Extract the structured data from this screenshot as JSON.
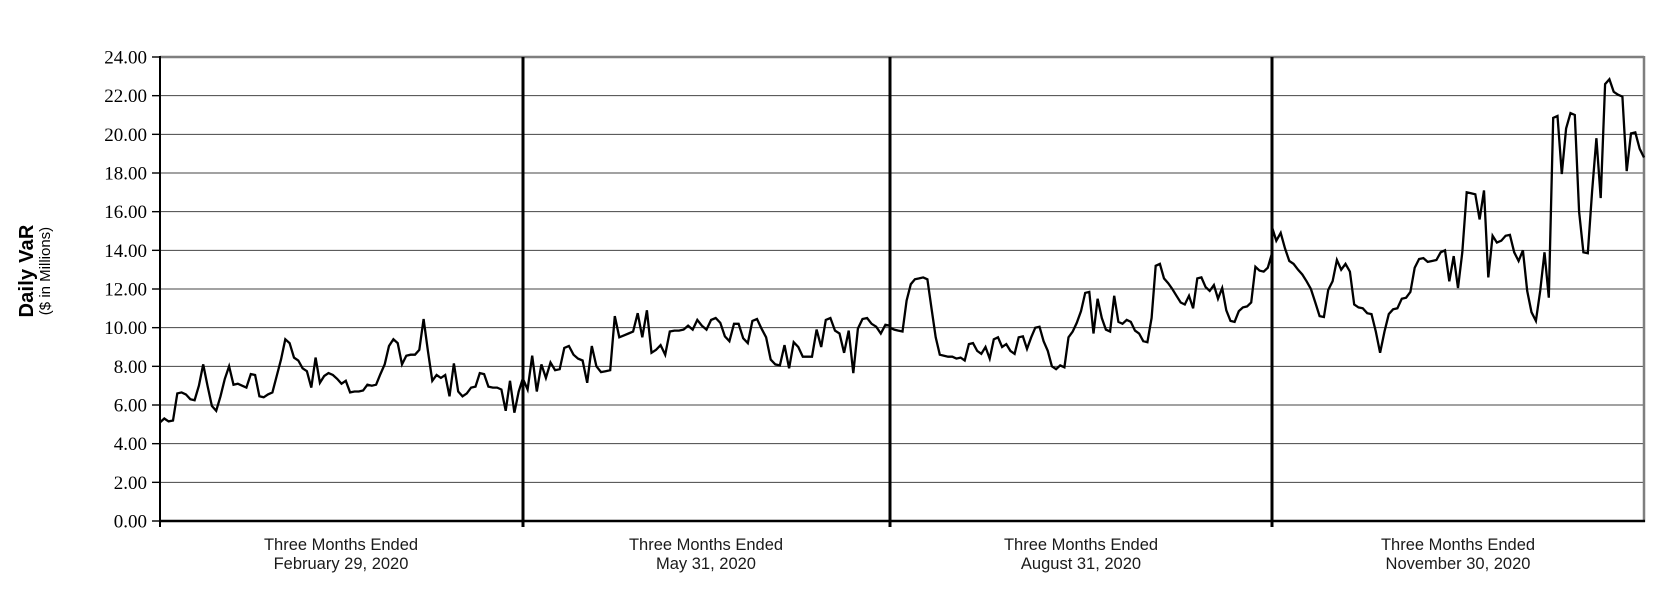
{
  "chart_data": {
    "type": "line",
    "title": "",
    "ylabel": "Daily VaR",
    "ylabel_sub": "($ in Millions)",
    "ylim": [
      0,
      24
    ],
    "ytick_step": 2,
    "ytick_labels": [
      "0.00",
      "2.00",
      "4.00",
      "6.00",
      "8.00",
      "10.00",
      "12.00",
      "14.00",
      "16.00",
      "18.00",
      "20.00",
      "22.00",
      "24.00"
    ],
    "grid": true,
    "legend_position": "none",
    "line_color": "#000000",
    "grid_color": "#444444",
    "border_color": "#7f7f7f",
    "axis_color": "#000000",
    "sections": [
      {
        "label_line1": "Three Months Ended",
        "label_line2": "February 29, 2020",
        "values": [
          5.1,
          5.3,
          5.15,
          5.2,
          6.6,
          6.65,
          6.55,
          6.3,
          6.25,
          7.0,
          8.1,
          7.0,
          5.95,
          5.7,
          6.45,
          7.35,
          8.0,
          7.05,
          7.1,
          7.0,
          6.9,
          7.6,
          7.55,
          6.45,
          6.4,
          6.55,
          6.65,
          7.5,
          8.35,
          9.4,
          9.2,
          8.45,
          8.3,
          7.9,
          7.75,
          6.9,
          8.45,
          7.15,
          7.5,
          7.65,
          7.55,
          7.35,
          7.1,
          7.25,
          6.65,
          6.7,
          6.7,
          6.75,
          7.05,
          7.0,
          7.05,
          7.6,
          8.1,
          9.05,
          9.4,
          9.2,
          8.1,
          8.55,
          8.6,
          8.6,
          8.85,
          10.45,
          8.8,
          7.25,
          7.55,
          7.4,
          7.55,
          6.45,
          8.15,
          6.7,
          6.45,
          6.6,
          6.9,
          6.95,
          7.65,
          7.6,
          6.95,
          6.9,
          6.9,
          6.8,
          5.7,
          7.25,
          5.6,
          6.7,
          7.4
        ]
      },
      {
        "label_line1": "Three Months Ended",
        "label_line2": "May 31, 2020",
        "values": [
          7.35,
          6.8,
          8.55,
          6.7,
          8.1,
          7.4,
          8.2,
          7.8,
          7.85,
          8.95,
          9.05,
          8.6,
          8.4,
          8.3,
          7.15,
          9.05,
          8.0,
          7.7,
          7.75,
          7.8,
          10.6,
          9.5,
          9.6,
          9.7,
          9.8,
          10.75,
          9.5,
          10.9,
          8.7,
          8.85,
          9.1,
          8.6,
          9.8,
          9.85,
          9.85,
          9.9,
          10.1,
          9.9,
          10.4,
          10.1,
          9.9,
          10.4,
          10.5,
          10.25,
          9.55,
          9.3,
          10.2,
          10.2,
          9.45,
          9.2,
          10.35,
          10.45,
          9.95,
          9.5,
          8.35,
          8.1,
          8.05,
          9.1,
          7.9,
          9.25,
          9.0,
          8.5,
          8.5,
          8.5,
          9.9,
          9.0,
          10.4,
          10.5,
          9.85,
          9.7,
          8.7,
          9.85,
          7.65,
          9.95,
          10.45,
          10.5,
          10.2,
          10.05,
          9.7,
          10.15,
          10.1
        ]
      },
      {
        "label_line1": "Three Months Ended",
        "label_line2": "August 31, 2020",
        "values": [
          10.0,
          9.9,
          9.85,
          9.8,
          11.4,
          12.25,
          12.5,
          12.55,
          12.6,
          12.5,
          11.0,
          9.5,
          8.6,
          8.55,
          8.5,
          8.5,
          8.4,
          8.45,
          8.3,
          9.15,
          9.2,
          8.8,
          8.65,
          9.0,
          8.4,
          9.4,
          9.5,
          9.0,
          9.15,
          8.8,
          8.65,
          9.5,
          9.55,
          8.9,
          9.5,
          10.0,
          10.05,
          9.3,
          8.8,
          8.0,
          7.85,
          8.05,
          7.95,
          9.5,
          9.8,
          10.25,
          10.85,
          11.8,
          11.85,
          9.7,
          11.5,
          10.5,
          9.9,
          9.8,
          11.65,
          10.3,
          10.2,
          10.4,
          10.3,
          9.85,
          9.7,
          9.3,
          9.25,
          10.5,
          13.2,
          13.3,
          12.55,
          12.3,
          12.0,
          11.65,
          11.3,
          11.2,
          11.65,
          11.0,
          12.55,
          12.6,
          12.1,
          11.9,
          12.2,
          11.5,
          12.05,
          10.9,
          10.35,
          10.3,
          10.85,
          11.05,
          11.1,
          11.3,
          13.15,
          12.95,
          12.9,
          13.1,
          13.85
        ]
      },
      {
        "label_line1": "Three Months Ended",
        "label_line2": "November 30, 2020",
        "values": [
          15.2,
          14.5,
          14.9,
          14.1,
          13.45,
          13.3,
          13.0,
          12.75,
          12.4,
          12.0,
          11.3,
          10.6,
          10.55,
          11.95,
          12.4,
          13.5,
          13.0,
          13.3,
          12.9,
          11.2,
          11.05,
          11.0,
          10.75,
          10.7,
          9.8,
          8.7,
          9.8,
          10.7,
          10.95,
          11.0,
          11.5,
          11.55,
          11.85,
          13.1,
          13.55,
          13.6,
          13.4,
          13.45,
          13.5,
          13.9,
          14.0,
          12.4,
          13.7,
          12.05,
          13.9,
          17.0,
          16.95,
          16.9,
          15.6,
          17.1,
          12.6,
          14.75,
          14.4,
          14.5,
          14.75,
          14.8,
          13.9,
          13.45,
          14.0,
          11.9,
          10.8,
          10.35,
          11.9,
          13.9,
          11.55,
          20.85,
          20.95,
          17.95,
          20.3,
          21.1,
          21.0,
          16.0,
          13.9,
          13.85,
          17.05,
          19.8,
          16.7,
          22.6,
          22.85,
          22.2,
          22.05,
          21.95,
          18.1,
          20.05,
          20.1,
          19.25,
          18.8
        ]
      }
    ]
  }
}
